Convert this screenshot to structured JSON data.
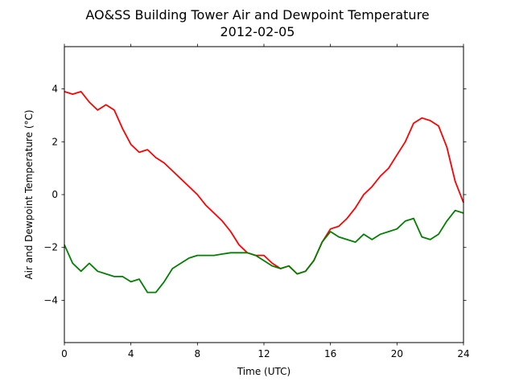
{
  "chart_data": {
    "type": "line",
    "title": "AO&SS Building Tower Air and Dewpoint Temperature",
    "subtitle": "2012-02-05",
    "xlabel": "Time (UTC)",
    "ylabel": "Air and Dewpoint Temperature (°C)",
    "xlim": [
      0,
      24
    ],
    "ylim": [
      -5.6,
      5.6
    ],
    "xticks": [
      0,
      4,
      8,
      12,
      16,
      20,
      24
    ],
    "yticks": [
      -4,
      -2,
      0,
      2,
      4
    ],
    "grid": false,
    "legend": "none",
    "series": [
      {
        "color": "#ff0000",
        "x": [
          0,
          0.5,
          1,
          1.5,
          2,
          2.5,
          3,
          3.5,
          4,
          4.5,
          5,
          5.5,
          6,
          6.5,
          7,
          7.5,
          8,
          8.5,
          9,
          9.5,
          10,
          10.5,
          11,
          11.5,
          12,
          12.5,
          13,
          13.5,
          14,
          14.5,
          15,
          15.5,
          16,
          16.5,
          17,
          17.5,
          18,
          18.5,
          19,
          19.5,
          20,
          20.5,
          21,
          21.5,
          22,
          22.5,
          23,
          23.5,
          24
        ],
        "y": [
          3.9,
          3.8,
          3.9,
          3.5,
          3.2,
          3.4,
          3.2,
          2.5,
          1.9,
          1.6,
          1.7,
          1.4,
          1.2,
          0.9,
          0.6,
          0.3,
          0.0,
          -0.4,
          -0.7,
          -1.0,
          -1.4,
          -1.9,
          -2.2,
          -2.3,
          -2.3,
          -2.6,
          -2.8,
          -2.7,
          -3.0,
          -2.9,
          -2.5,
          -1.8,
          -1.3,
          -1.2,
          -0.9,
          -0.5,
          0.0,
          0.3,
          0.7,
          1.0,
          1.5,
          2.0,
          2.7,
          2.9,
          2.8,
          2.6,
          1.8,
          0.5,
          -0.3
        ]
      },
      {
        "color": "#008000",
        "x": [
          0,
          0.5,
          1,
          1.5,
          2,
          2.5,
          3,
          3.5,
          4,
          4.5,
          5,
          5.5,
          6,
          6.5,
          7,
          7.5,
          8,
          8.5,
          9,
          9.5,
          10,
          10.5,
          11,
          11.5,
          12,
          12.5,
          13,
          13.5,
          14,
          14.5,
          15,
          15.5,
          16,
          16.5,
          17,
          17.5,
          18,
          18.5,
          19,
          19.5,
          20,
          20.5,
          21,
          21.5,
          22,
          22.5,
          23,
          23.5,
          24
        ],
        "y": [
          -1.9,
          -2.6,
          -2.9,
          -2.6,
          -2.9,
          -3.0,
          -3.1,
          -3.1,
          -3.3,
          -3.2,
          -3.7,
          -3.7,
          -3.3,
          -2.8,
          -2.6,
          -2.4,
          -2.3,
          -2.3,
          -2.3,
          -2.25,
          -2.2,
          -2.2,
          -2.2,
          -2.3,
          -2.5,
          -2.7,
          -2.8,
          -2.7,
          -3.0,
          -2.9,
          -2.5,
          -1.8,
          -1.4,
          -1.6,
          -1.7,
          -1.8,
          -1.5,
          -1.7,
          -1.5,
          -1.4,
          -1.3,
          -1.0,
          -0.9,
          -1.6,
          -1.7,
          -1.5,
          -1.0,
          -0.6,
          -0.7
        ]
      }
    ]
  }
}
